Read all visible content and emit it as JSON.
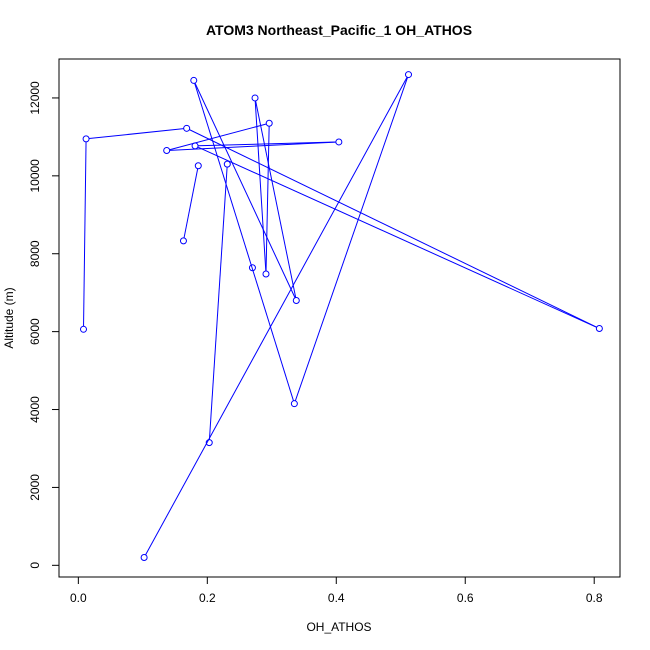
{
  "chart_data": {
    "type": "line",
    "title": "ATOM3 Northeast_Pacific_1 OH_ATHOS",
    "xlabel": "OH_ATHOS",
    "ylabel": "Altitude (m)",
    "xlim": [
      -0.03,
      0.84
    ],
    "ylim": [
      -300,
      13000
    ],
    "x_ticks": [
      0.0,
      0.2,
      0.4,
      0.6,
      0.8
    ],
    "x_tick_labels": [
      "0.0",
      "0.2",
      "0.4",
      "0.6",
      "0.8"
    ],
    "y_ticks": [
      0,
      2000,
      4000,
      6000,
      8000,
      10000,
      12000
    ],
    "y_tick_labels": [
      "0",
      "2000",
      "4000",
      "6000",
      "8000",
      "10000",
      "12000"
    ],
    "grid": false,
    "series": [
      {
        "color": "#0000ff",
        "marker": "open-circle",
        "points": [
          {
            "x": 0.102,
            "y": 200
          },
          {
            "x": 0.512,
            "y": 12600
          },
          {
            "x": 0.335,
            "y": 4150
          },
          {
            "x": 0.179,
            "y": 12450
          },
          {
            "x": 0.338,
            "y": 6800
          },
          {
            "x": 0.274,
            "y": 12000
          },
          {
            "x": 0.291,
            "y": 7480
          },
          {
            "x": 0.296,
            "y": 11350
          },
          {
            "x": 0.137,
            "y": 10650
          },
          {
            "x": 0.404,
            "y": 10870
          },
          {
            "x": 0.181,
            "y": 10770
          },
          {
            "x": 0.808,
            "y": 6080
          },
          {
            "x": 0.168,
            "y": 11220
          },
          {
            "x": 0.012,
            "y": 10950
          },
          {
            "x": 0.008,
            "y": 6060
          }
        ]
      },
      {
        "color": "#0000ff",
        "marker": "open-circle",
        "points": [
          {
            "x": 0.163,
            "y": 8330
          },
          {
            "x": 0.186,
            "y": 10260
          }
        ]
      },
      {
        "color": "#0000ff",
        "marker": "open-circle",
        "points": [
          {
            "x": 0.231,
            "y": 10300
          },
          {
            "x": 0.203,
            "y": 3150
          }
        ]
      },
      {
        "color": "#0000ff",
        "marker": "open-circle",
        "points": [
          {
            "x": 0.27,
            "y": 7640
          }
        ]
      }
    ]
  }
}
